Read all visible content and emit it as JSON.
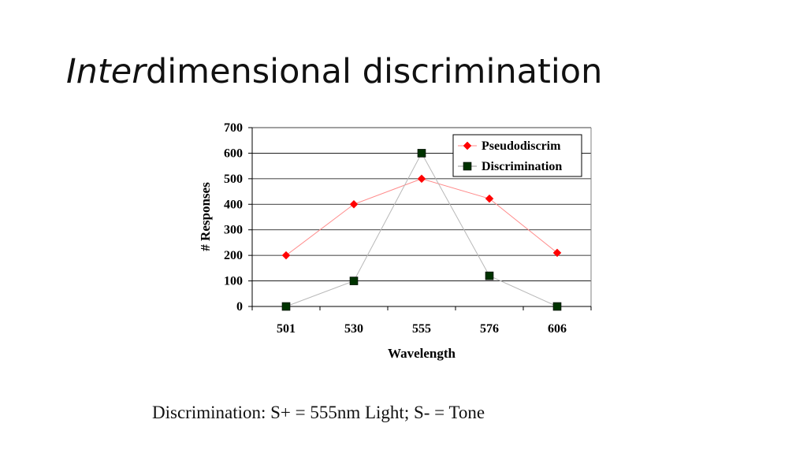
{
  "slide": {
    "title_italic": "Inter",
    "title_rest": "dimensional discrimination",
    "caption": "Discrimination: S+ = 555nm Light; S- = Tone"
  },
  "chart_data": {
    "type": "line",
    "categories": [
      "501",
      "530",
      "555",
      "576",
      "606"
    ],
    "series": [
      {
        "name": "Pseudodiscrim",
        "values": [
          200,
          400,
          500,
          422,
          210
        ],
        "color": "#ff0000",
        "marker": "diamond"
      },
      {
        "name": "Discrimination",
        "values": [
          0,
          100,
          600,
          120,
          0
        ],
        "color": "#003300",
        "marker": "square"
      }
    ],
    "title": "",
    "xlabel": "Wavelength",
    "ylabel": "# Responses",
    "ylim": [
      0,
      700
    ],
    "yticks": [
      0,
      100,
      200,
      300,
      400,
      500,
      600,
      700
    ],
    "grid": true,
    "legend_position": "top-right"
  }
}
